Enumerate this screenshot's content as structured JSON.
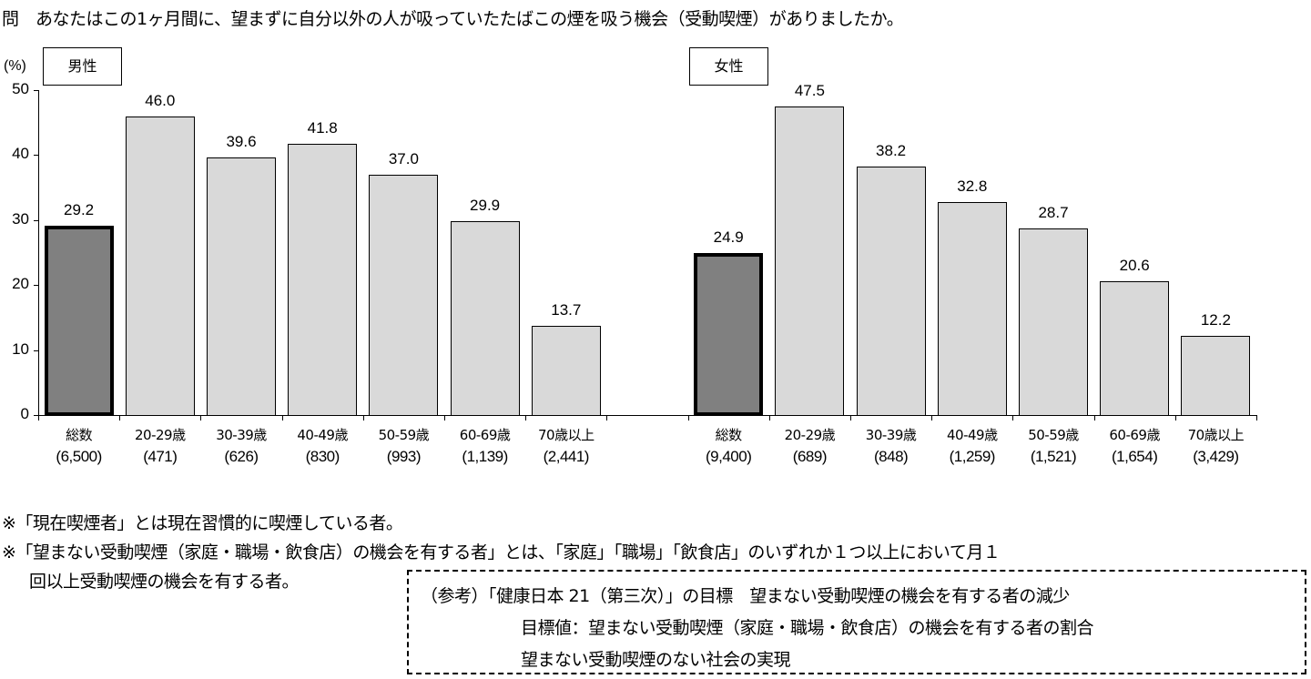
{
  "question": "問　あなたはこの1ヶ月間に、望まずに自分以外の人が吸っていたたばこの煙を吸う機会（受動喫煙）がありましたか。",
  "chart_data": {
    "type": "bar",
    "title": "問　あなたはこの1ヶ月間に、望まずに自分以外の人が吸っていたたばこの煙を吸う機会（受動喫煙）がありましたか。",
    "ylabel": "(%)",
    "ylim": [
      0,
      50
    ],
    "yticks": [
      0,
      10,
      20,
      30,
      40,
      50
    ],
    "grid": false,
    "legend": null,
    "panels": [
      {
        "name": "男性",
        "categories": [
          "総数",
          "20-29歳",
          "30-39歳",
          "40-49歳",
          "50-59歳",
          "60-69歳",
          "70歳以上"
        ],
        "sample_sizes": [
          "(6,500)",
          "(471)",
          "(626)",
          "(830)",
          "(993)",
          "(1,139)",
          "(2,441)"
        ],
        "values": [
          29.2,
          46.0,
          39.6,
          41.8,
          37.0,
          29.9,
          13.7
        ],
        "value_labels": [
          "29.2",
          "46.0",
          "39.6",
          "41.8",
          "37.0",
          "29.9",
          "13.7"
        ]
      },
      {
        "name": "女性",
        "categories": [
          "総数",
          "20-29歳",
          "30-39歳",
          "40-49歳",
          "50-59歳",
          "60-69歳",
          "70歳以上"
        ],
        "sample_sizes": [
          "(9,400)",
          "(689)",
          "(848)",
          "(1,259)",
          "(1,521)",
          "(1,654)",
          "(3,429)"
        ],
        "values": [
          24.9,
          47.5,
          38.2,
          32.8,
          28.7,
          20.6,
          12.2
        ],
        "value_labels": [
          "24.9",
          "47.5",
          "38.2",
          "32.8",
          "28.7",
          "20.6",
          "12.2"
        ]
      }
    ],
    "colors": {
      "total_bar": "#808080",
      "age_bar": "#d9d9d9",
      "outline": "#000000"
    }
  },
  "y_axis": {
    "unit": "(%)",
    "ticks": [
      "50",
      "40",
      "30",
      "20",
      "10",
      "0"
    ]
  },
  "notes": [
    "※「現在喫煙者」とは現在習慣的に喫煙している者。",
    "※「望まない受動喫煙（家庭・職場・飲食店）の機会を有する者」とは、「家庭」「職場」「飲食店」のいずれか１つ以上において月１",
    "回以上受動喫煙の機会を有する者。"
  ],
  "reference": {
    "line1": "（参考）「健康日本 21（第三次）」の目標　望まない受動喫煙の機会を有する者の減少",
    "line2": "目標値：望まない受動喫煙（家庭・職場・飲食店）の機会を有する者の割合",
    "line3": "望まない受動喫煙のない社会の実現"
  }
}
